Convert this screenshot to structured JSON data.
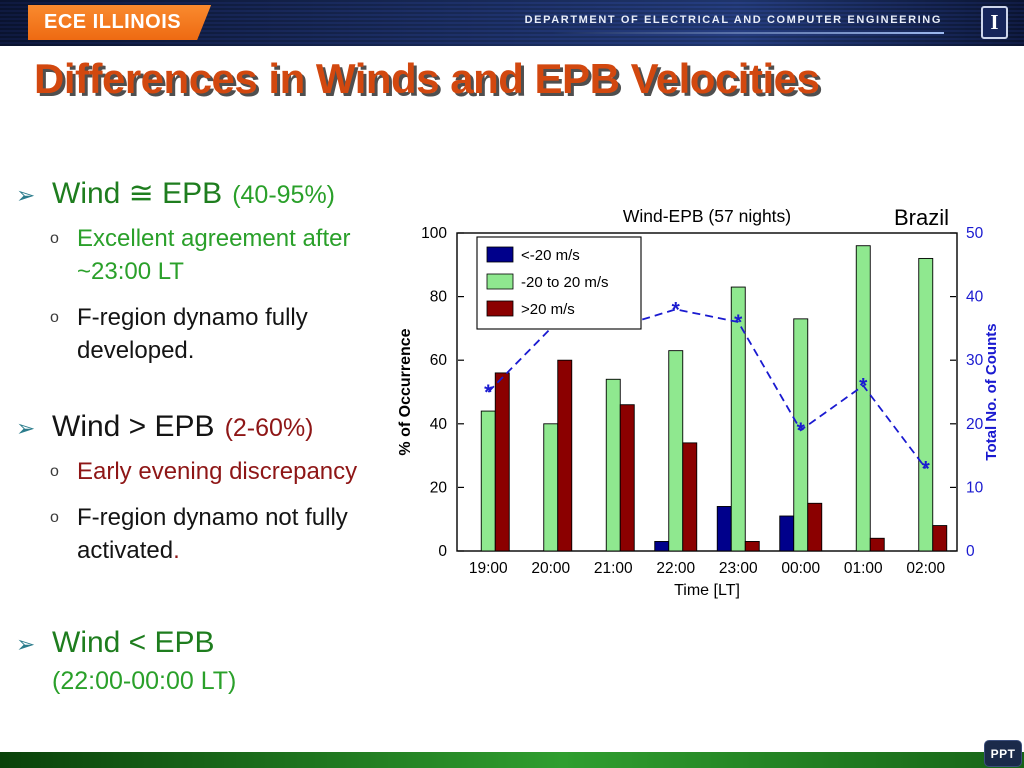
{
  "header": {
    "logo": "ECE ILLINOIS",
    "department": "DEPARTMENT OF ELECTRICAL AND COMPUTER ENGINEERING",
    "logo_mark": "I"
  },
  "title": "Differences in Winds and EPB Velocities",
  "watermark": "PPT",
  "colors": {
    "title_orange": "#d2480f",
    "green_dark": "#1e7d1e",
    "green": "#2aa02a",
    "dark_red": "#8e1616",
    "header_navy": "#16265c",
    "badge_orange": "#ee6a12",
    "footer_green": "#2f9e2f"
  },
  "bullets": [
    {
      "marker": "➢",
      "head": "Wind ≅ EPB",
      "note": "(40-95%)",
      "subs": [
        {
          "marker": "o",
          "text": "Excellent agreement  after\n~23:00 LT"
        },
        {
          "marker": "o",
          "text": "F-region dynamo fully\ndeveloped."
        }
      ]
    },
    {
      "marker": "➢",
      "head": "Wind > EPB",
      "note": "(2-60%)",
      "subs": [
        {
          "marker": "o",
          "text": "Early evening discrepancy"
        },
        {
          "marker": "o",
          "text": "F-region dynamo not fully\nactivated",
          "tail": "."
        }
      ]
    },
    {
      "marker": "➢",
      "head": "Wind < EPB",
      "note": "(22:00-00:00 LT)"
    }
  ],
  "chart_data": {
    "type": "bar",
    "title": "Wind-EPB (57 nights)",
    "annotation": "Brazil",
    "categories": [
      "19:00",
      "20:00",
      "21:00",
      "22:00",
      "23:00",
      "00:00",
      "01:00",
      "02:00"
    ],
    "series": [
      {
        "name": "<-20 m/s",
        "color": "#00008b",
        "values": [
          0,
          0,
          0,
          3,
          14,
          11,
          0,
          0
        ]
      },
      {
        "name": "-20 to 20 m/s",
        "color": "#8fe88f",
        "values": [
          44,
          40,
          54,
          63,
          83,
          73,
          96,
          92
        ]
      },
      {
        "name": ">20 m/s",
        "color": "#8b0000",
        "values": [
          56,
          60,
          46,
          34,
          3,
          15,
          4,
          8
        ]
      }
    ],
    "line": {
      "name": "Total No. of Counts",
      "color": "#1a1ad0",
      "style": "dashed-star",
      "values": [
        25,
        35,
        35,
        38,
        36,
        19,
        26,
        13
      ],
      "axis": "right"
    },
    "left_axis": {
      "label": "% of Occurrence",
      "min": 0,
      "max": 100,
      "ticks": [
        0,
        20,
        40,
        60,
        80,
        100
      ]
    },
    "right_axis": {
      "label": "Total No. of Counts",
      "min": 0,
      "max": 50,
      "ticks": [
        0,
        10,
        20,
        30,
        40,
        50
      ],
      "color": "#1a1ad0"
    },
    "xlabel": "Time [LT]",
    "grid": false,
    "legend_position": "top-left"
  }
}
